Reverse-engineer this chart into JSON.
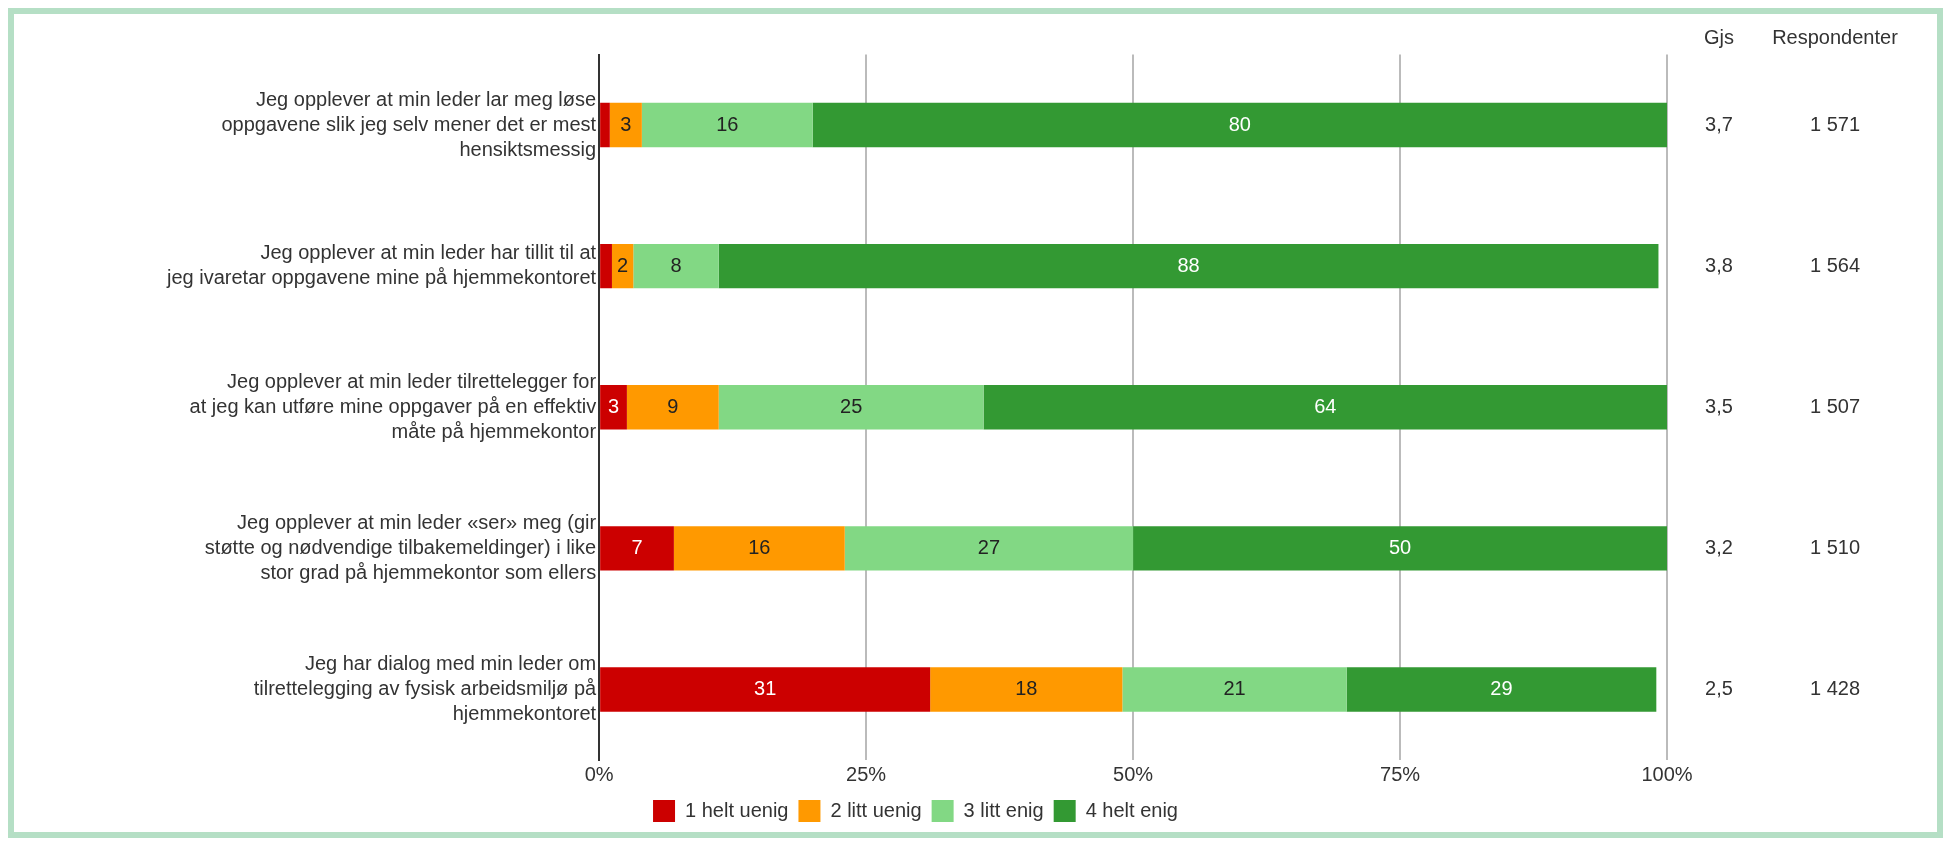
{
  "chart_data": {
    "type": "bar",
    "orientation": "horizontal",
    "stacked": true,
    "categories": [
      "Jeg opplever at min leder lar meg løse oppgavene slik jeg selv mener det er mest hensiktsmessig",
      "Jeg opplever at min leder har tillit til at jeg ivaretar oppgavene mine på hjemmekontoret",
      "Jeg opplever at min leder tilrettelegger for at jeg kan utføre mine oppgaver på en effektiv måte på hjemmekontor",
      "Jeg opplever at min leder «ser» meg (gir støtte og nødvendige tilbakemeldinger) i like stor grad på hjemmekontor som ellers",
      "Jeg har dialog med min leder om tilrettelegging av fysisk arbeidsmiljø på hjemmekontoret"
    ],
    "series": [
      {
        "name": "1 helt uenig",
        "color": "#cc0000",
        "values": [
          1,
          1.2,
          2.6,
          7,
          31
        ],
        "value_labels": [
          null,
          null,
          "3",
          "7",
          "31"
        ]
      },
      {
        "name": "2 litt uenig",
        "color": "#ff9900",
        "values": [
          3,
          2,
          8.6,
          16,
          18
        ],
        "value_labels": [
          "3",
          "2",
          "9",
          "16",
          "18"
        ]
      },
      {
        "name": "3 litt enig",
        "color": "#82d884",
        "values": [
          16,
          8,
          24.8,
          27,
          21
        ],
        "value_labels": [
          "16",
          "8",
          "25",
          "27",
          "21"
        ]
      },
      {
        "name": "4 helt enig",
        "color": "#339933",
        "values": [
          80,
          88,
          64,
          50,
          29
        ],
        "value_labels": [
          "80",
          "88",
          "64",
          "50",
          "29"
        ]
      }
    ],
    "xlim": [
      0,
      100
    ],
    "xticks": [
      {
        "value": 0,
        "label": "0%"
      },
      {
        "value": 25,
        "label": "25%"
      },
      {
        "value": 50,
        "label": "50%"
      },
      {
        "value": 75,
        "label": "75%"
      },
      {
        "value": 100,
        "label": "100%"
      }
    ],
    "grid": "x",
    "legend": "bottom",
    "annotations": [
      "Gjs",
      "Respondenter",
      "3,7",
      "1 571",
      "3,8",
      "1 564",
      "3,5",
      "1 507",
      "3,2",
      "1 510",
      "2,5",
      "1 428"
    ]
  }
}
